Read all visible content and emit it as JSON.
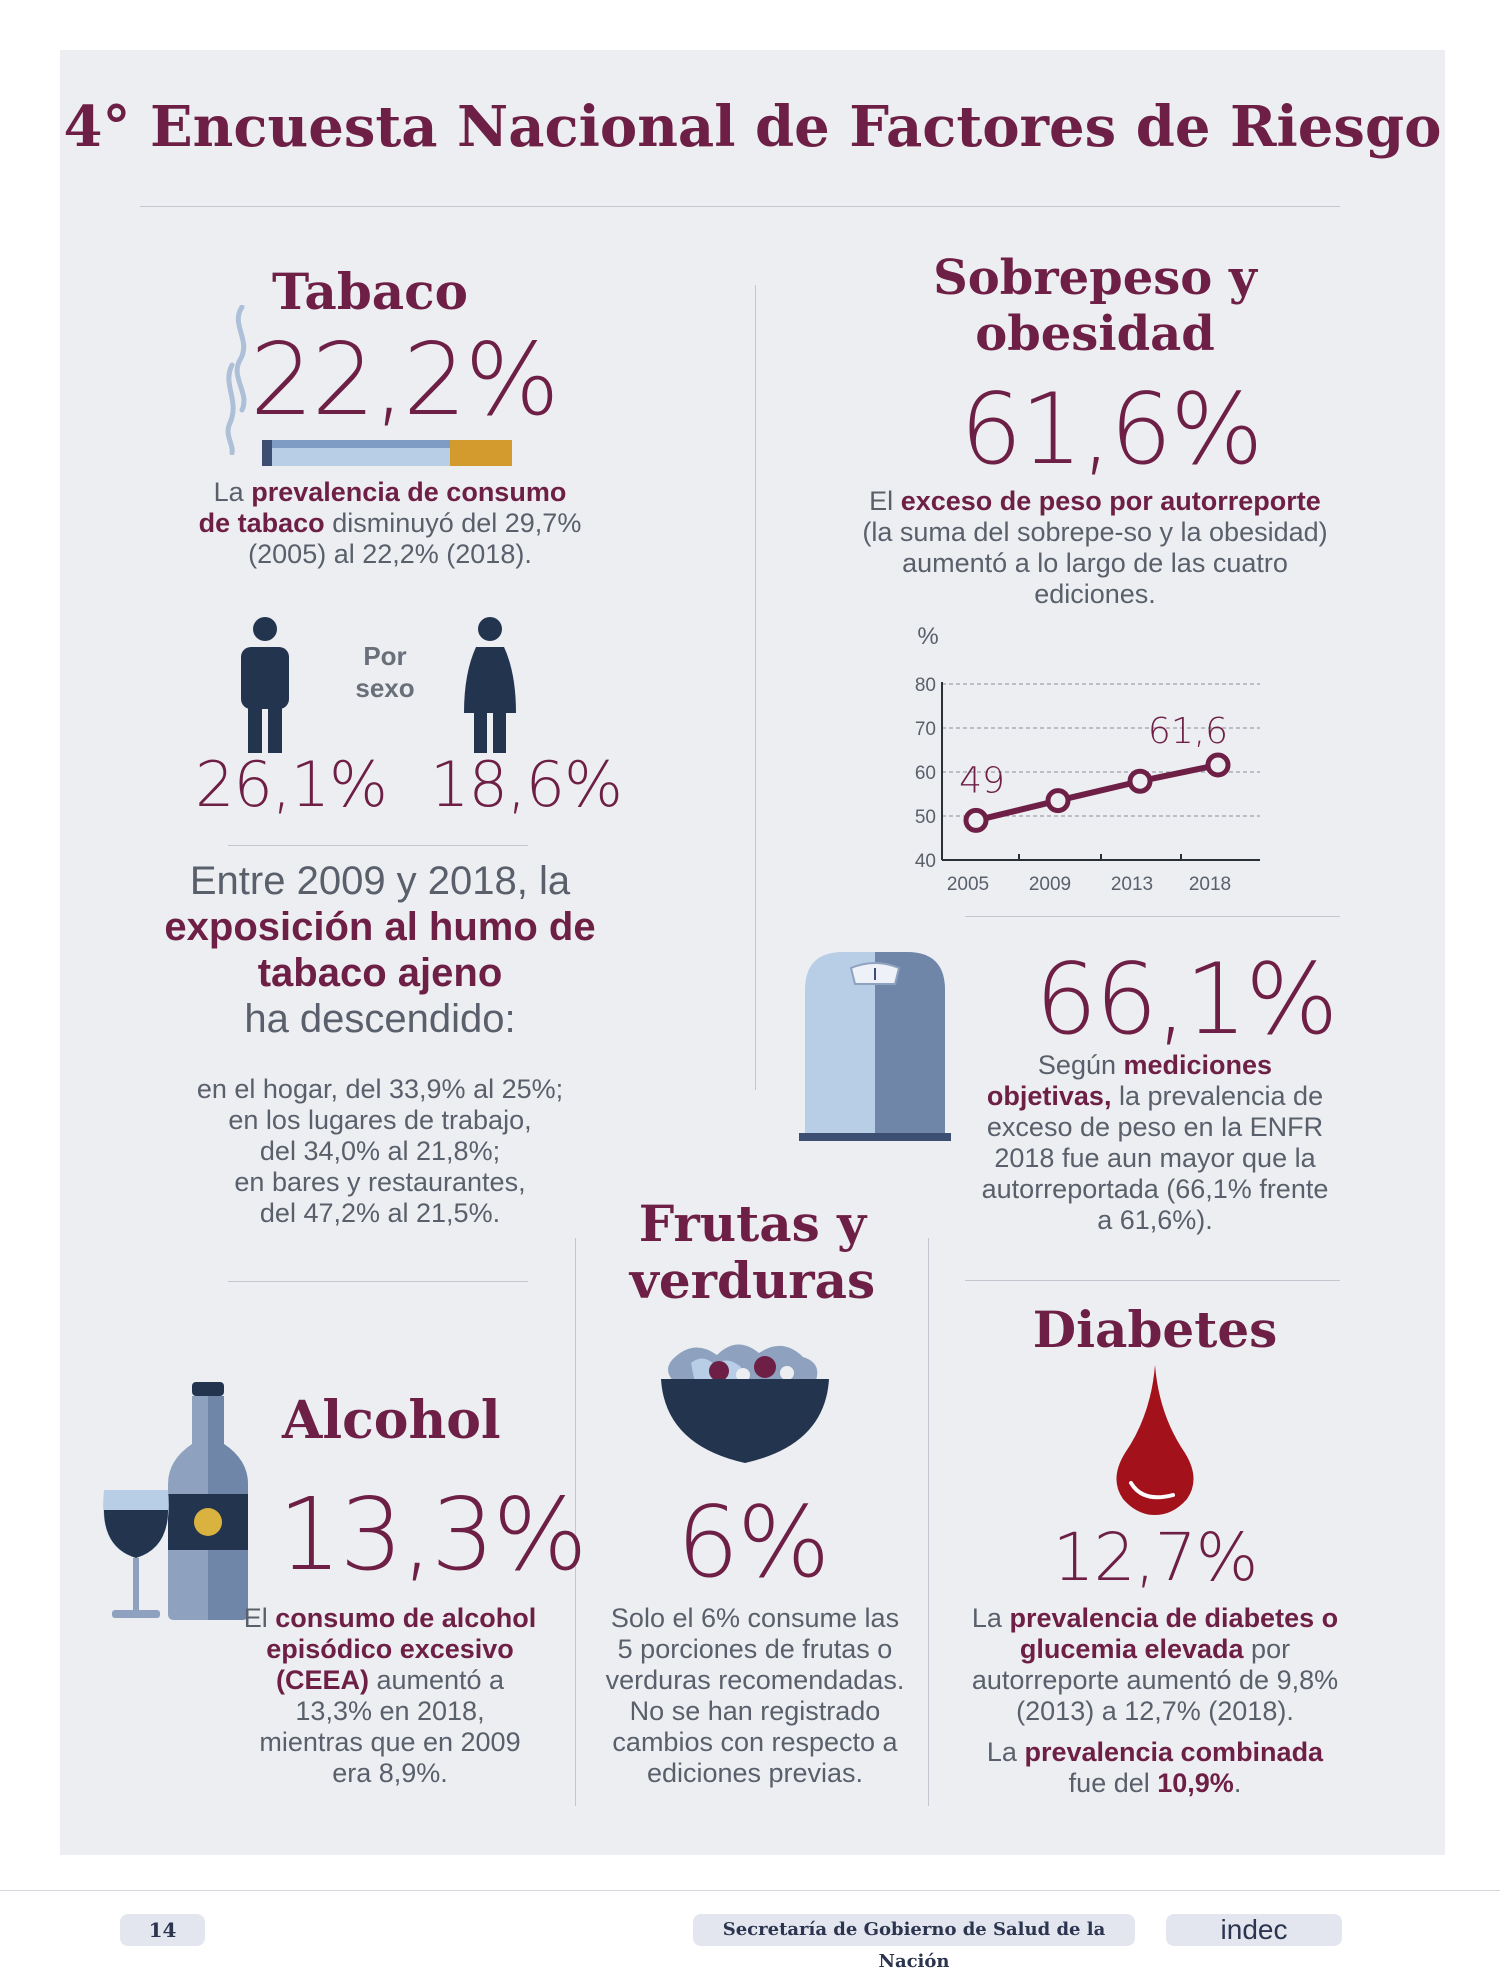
{
  "title": "4° Encuesta Nacional de Factores de Riesgo",
  "tabaco": {
    "heading": "Tabaco",
    "value": "22,2%",
    "desc_pre": "La ",
    "desc_bold": "prevalencia de consumo de tabaco",
    "desc_post": " disminuyó del 29,7% (2005) al 22,2% (2018).",
    "por_sexo": "Por sexo",
    "male_value": "26,1%",
    "female_value": "18,6%",
    "exposure_pre": "Entre 2009 y 2018, la",
    "exposure_bold": "exposición al humo de tabaco ajeno",
    "exposure_post": "ha descendido:",
    "details": [
      "en el hogar, del 33,9% al 25%;",
      "en los lugares de trabajo,",
      "del 34,0% al 21,8%;",
      "en bares y restaurantes,",
      "del 47,2% al 21,5%."
    ]
  },
  "sobrepeso": {
    "heading_line1": "Sobrepeso y",
    "heading_line2": "obesidad",
    "value": "61,6%",
    "desc_pre": "El ",
    "desc_bold": "exceso de peso por autorreporte",
    "desc_post": " (la suma del sobrepe-so y la obesidad) aumentó a lo largo de las cuatro ediciones.",
    "objective_value": "66,1%",
    "objective_pre": "Según ",
    "objective_bold": "mediciones objetivas,",
    "objective_post": " la prevalencia de exceso de peso en la ENFR 2018 fue aun mayor que la autorreportada (66,1% frente a 61,6%)."
  },
  "chart_data": {
    "type": "line",
    "ylabel": "%",
    "categories": [
      "2005",
      "2009",
      "2013",
      "2018"
    ],
    "values": [
      49,
      53.5,
      57.9,
      61.6
    ],
    "point_labels": [
      {
        "index": 0,
        "text": "49"
      },
      {
        "index": 3,
        "text": "61,6"
      }
    ],
    "ylim": [
      40,
      80
    ],
    "yticks": [
      "40",
      "50",
      "60",
      "70",
      "80"
    ],
    "grid": true,
    "color": "#6e1f45"
  },
  "frutas": {
    "heading_line1": "Frutas y",
    "heading_line2": "verduras",
    "value": "6%",
    "desc": "Solo el 6% consume las 5 porciones de frutas o verduras recomendadas. No se han registrado cambios con respecto a ediciones previas."
  },
  "alcohol": {
    "heading": "Alcohol",
    "value": "13,3%",
    "desc_pre": "El ",
    "desc_bold": "consumo de alcohol episódico excesivo (CEEA)",
    "desc_post": " aumentó a 13,3% en 2018, mientras que en 2009 era 8,9%."
  },
  "diabetes": {
    "heading": "Diabetes",
    "value": "12,7%",
    "desc_pre": "La ",
    "desc_bold": "prevalencia de diabetes o glucemia elevada",
    "desc_post": " por autorreporte aumentó de 9,8% (2013) a 12,7% (2018).",
    "combined_pre": "La ",
    "combined_bold": "prevalencia combinada",
    "combined_mid": " fue del ",
    "combined_value": "10,9%",
    "combined_end": "."
  },
  "footer": {
    "page_number": "14",
    "ministry": "Secretaría de Gobierno de Salud de la Nación",
    "brand": "indec"
  },
  "colors": {
    "accent": "#6e1f45",
    "panel": "#eceef2",
    "navy": "#23344f",
    "light_blue": "#b8cde6",
    "blood": "#a3121b"
  },
  "icons": [
    "cigarette-icon",
    "male-person-icon",
    "female-person-icon",
    "scale-icon",
    "salad-bowl-icon",
    "wine-glass-icon",
    "bottle-icon",
    "blood-drop-icon"
  ]
}
